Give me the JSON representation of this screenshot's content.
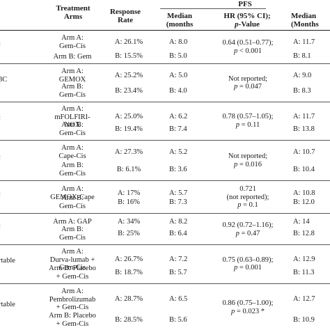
{
  "header": {
    "pfs_group": "PFS",
    "treatment_arms_1": "Treatment",
    "treatment_arms_2": "Arms",
    "response_rate_1": "Response",
    "response_rate_2": "Rate",
    "median_1": "Median",
    "median_2": "(months",
    "hr_1": "HR (95% CI);",
    "hr_2": "p-Value",
    "os_median_1": "Median",
    "os_median_2": "(Months"
  },
  "rows": [
    {
      "left_fragment": "c",
      "arm_a": [
        "Arm A:",
        "Gem-Cis"
      ],
      "arm_b": [
        "Arm B: Gem"
      ],
      "rr_a": "A: 26.1%",
      "rr_b": "B: 15.5%",
      "pfs_a": "A: 8.0",
      "pfs_b": "B: 5.0",
      "hr": [
        "0.64 (0.51–0.77);",
        "p < 0.001"
      ],
      "os_a": "A: 11.7",
      "os_b": "B: 8.1"
    },
    {
      "left_fragment": "3C",
      "arm_a": [
        "Arm A:",
        "GEMOX"
      ],
      "arm_b": [
        "Arm B:",
        "Gem-Cis"
      ],
      "rr_a": "A: 25.2%",
      "rr_b": "B: 23.4%",
      "pfs_a": "A: 5.0",
      "pfs_b": "B: 4.0",
      "hr": [
        "Not reported;",
        "p = 0.047"
      ],
      "os_a": "A: 9.0",
      "os_b": "B: 8.3"
    },
    {
      "left_fragment": "c",
      "arm_a": [
        "Arm A:",
        "mFOLFIRI-",
        "NOX"
      ],
      "arm_b": [
        "Arm B:",
        "Gem-Cis"
      ],
      "rr_a": "A: 25.0%",
      "rr_b": "B: 19.4%",
      "pfs_a": "A: 6.2",
      "pfs_b": "B: 7.4",
      "hr": [
        "0.78 (0.57–1.05);",
        "p = 0.11"
      ],
      "os_a": "A: 11.7",
      "os_b": "B: 13.8"
    },
    {
      "left_fragment": "c",
      "arm_a": [
        "Arm A:",
        "Cape-Cis"
      ],
      "arm_b": [
        "Arm B:",
        "Gem-Cis"
      ],
      "rr_a": "A: 27.3%",
      "rr_b": "B: 6.1%",
      "pfs_a": "A: 5.2",
      "pfs_b": "B: 3.6",
      "hr": [
        "Not reported;",
        "p = 0.016"
      ],
      "os_a": "A: 10.7",
      "os_b": "B: 10.4"
    },
    {
      "left_fragment": "c",
      "arm_a": [
        "Arm A:",
        "GEMOX-Cape"
      ],
      "arm_b": [
        "Arm B:",
        "Gem-Cis"
      ],
      "rr_a": "A: 17%",
      "rr_b": "B: 16%",
      "pfs_a": "A: 5.7",
      "pfs_b": "B: 7.3",
      "hr": [
        "0.721",
        "(not reported);",
        "p = 0.1"
      ],
      "os_a": "A: 10.8",
      "os_b": "B: 12.0"
    },
    {
      "left_fragment": "c",
      "arm_a": [
        "Arm A: GAP"
      ],
      "arm_b": [
        "Arm B:",
        "Gem-Cis"
      ],
      "rr_a": "A: 34%",
      "rr_b": "B: 25%",
      "pfs_a": "A: 8.2",
      "pfs_b": "B: 6.4",
      "hr": [
        "0.92 (0.72–1.16);",
        "p = 0.47"
      ],
      "os_a": "A: 14",
      "os_b": "B: 12.8"
    },
    {
      "left_fragment": "rtable",
      "arm_a": [
        "Arm A:",
        "Durva-lumab +",
        "Gem-Cis"
      ],
      "arm_b": [
        "Arm B: Placebo",
        "+ Gem-Cis"
      ],
      "rr_a": "A: 26.7%",
      "rr_b": "B: 18.7%",
      "pfs_a": "A: 7.2",
      "pfs_b": "B: 5.7",
      "hr": [
        "0.75 (0.63–0.89);",
        "p = 0.001"
      ],
      "os_a": "A: 12.9",
      "os_b": "B: 11.3"
    },
    {
      "left_fragment": "rtable",
      "arm_a": [
        "Arm A:",
        "Pembrolizumab",
        "+ Gem-Cis"
      ],
      "arm_b": [
        "Arm B: Placebo",
        "+ Gem-Cis"
      ],
      "rr_a": "A: 28.7%",
      "rr_b": "B: 28.5%",
      "pfs_a": "A: 6.5",
      "pfs_b": "B: 5.6",
      "hr": [
        "0.86 (0.75–1.00);",
        "p = 0.023 *"
      ],
      "os_a": "A: 12.7",
      "os_b": "B: 10.9"
    }
  ]
}
